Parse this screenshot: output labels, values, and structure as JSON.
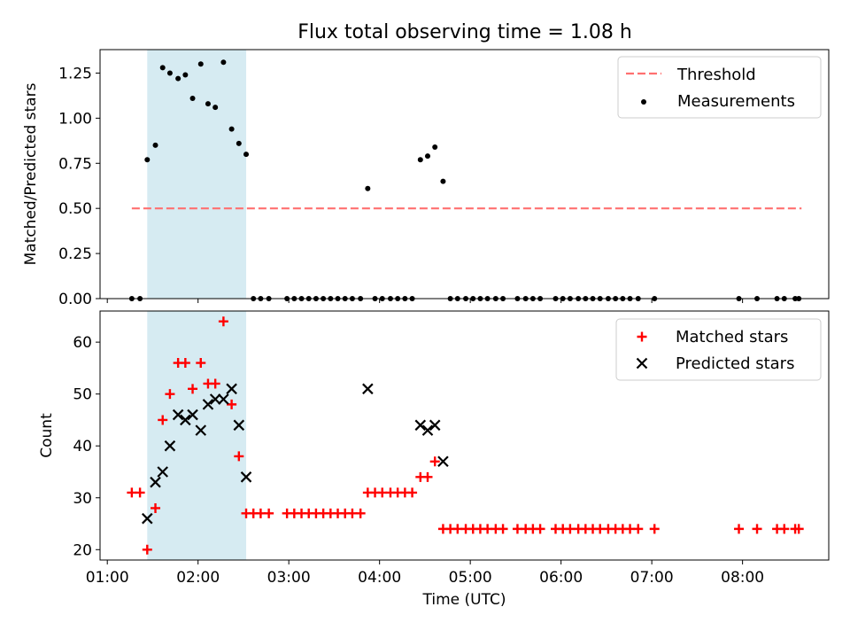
{
  "title": "Flux total observing time = 1.08 h",
  "colors": {
    "threshold": "#ff7070",
    "measurement": "#000000",
    "matched": "#ff0000",
    "predicted": "#000000",
    "band": "#add8e6"
  },
  "chart_data": [
    {
      "type": "scatter",
      "ylabel": "Matched/Predicted stars",
      "ylim": [
        0,
        1.38
      ],
      "yticks": [
        0,
        0.25,
        0.5,
        0.75,
        1.0,
        1.25
      ],
      "ytick_labels": [
        "0.00",
        "0.25",
        "0.50",
        "0.75",
        "1.00",
        "1.25"
      ],
      "xlim_hours": [
        0.92,
        8.95
      ],
      "xticks_hours": [
        1,
        2,
        3,
        4,
        5,
        6,
        7,
        8
      ],
      "highlight_band_hours": [
        1.44,
        2.53
      ],
      "legend": {
        "placement": "top-right",
        "entries": [
          "Threshold",
          "Measurements"
        ]
      },
      "threshold": {
        "name": "Threshold",
        "value": 0.5,
        "x_range_hours": [
          1.27,
          8.65
        ]
      },
      "measurements": {
        "name": "Measurements",
        "x_hours": [
          1.27,
          1.36,
          1.44,
          1.53,
          1.61,
          1.69,
          1.78,
          1.86,
          1.94,
          2.03,
          2.11,
          2.19,
          2.28,
          2.37,
          2.45,
          2.53,
          2.61,
          2.69,
          2.78,
          2.98,
          3.06,
          3.14,
          3.22,
          3.3,
          3.38,
          3.46,
          3.54,
          3.62,
          3.7,
          3.79,
          3.87,
          3.95,
          4.03,
          4.12,
          4.2,
          4.28,
          4.36,
          4.45,
          4.53,
          4.61,
          4.7,
          4.78,
          4.86,
          4.95,
          5.03,
          5.11,
          5.19,
          5.28,
          5.36,
          5.52,
          5.61,
          5.69,
          5.77,
          5.94,
          6.02,
          6.1,
          6.19,
          6.27,
          6.35,
          6.43,
          6.52,
          6.6,
          6.68,
          6.76,
          6.85,
          7.03,
          7.96,
          8.16,
          8.38,
          8.46,
          8.58,
          8.62
        ],
        "y": [
          0,
          0,
          0.77,
          0.85,
          1.28,
          1.25,
          1.22,
          1.24,
          1.11,
          1.3,
          1.08,
          1.06,
          1.31,
          0.94,
          0.86,
          0.8,
          0,
          0,
          0,
          0,
          0,
          0,
          0,
          0,
          0,
          0,
          0,
          0,
          0,
          0,
          0.61,
          0,
          0,
          0,
          0,
          0,
          0,
          0.77,
          0.79,
          0.84,
          0.65,
          0,
          0,
          0,
          0,
          0,
          0,
          0,
          0,
          0,
          0,
          0,
          0,
          0,
          0,
          0,
          0,
          0,
          0,
          0,
          0,
          0,
          0,
          0,
          0,
          0,
          0,
          0,
          0,
          0,
          0,
          0
        ]
      }
    },
    {
      "type": "scatter",
      "xlabel": "Time (UTC)",
      "ylabel": "Count",
      "ylim": [
        18,
        66
      ],
      "yticks": [
        20,
        30,
        40,
        50,
        60
      ],
      "xlim_hours": [
        0.92,
        8.95
      ],
      "xticks_hours": [
        1,
        2,
        3,
        4,
        5,
        6,
        7,
        8
      ],
      "xtick_labels": [
        "01:00",
        "02:00",
        "03:00",
        "04:00",
        "05:00",
        "06:00",
        "07:00",
        "08:00"
      ],
      "highlight_band_hours": [
        1.44,
        2.53
      ],
      "legend": {
        "placement": "top-right",
        "entries": [
          "Matched stars",
          "Predicted stars"
        ]
      },
      "matched": {
        "name": "Matched stars",
        "x_hours": [
          1.27,
          1.36,
          1.44,
          1.53,
          1.61,
          1.69,
          1.78,
          1.86,
          1.94,
          2.03,
          2.11,
          2.19,
          2.28,
          2.37,
          2.45,
          2.53,
          2.61,
          2.69,
          2.78,
          2.98,
          3.06,
          3.14,
          3.22,
          3.3,
          3.38,
          3.46,
          3.54,
          3.62,
          3.7,
          3.79,
          3.87,
          3.95,
          4.03,
          4.12,
          4.2,
          4.28,
          4.36,
          4.45,
          4.53,
          4.61,
          4.7,
          4.78,
          4.86,
          4.95,
          5.03,
          5.11,
          5.19,
          5.28,
          5.36,
          5.52,
          5.61,
          5.69,
          5.77,
          5.94,
          6.02,
          6.1,
          6.19,
          6.27,
          6.35,
          6.43,
          6.52,
          6.6,
          6.68,
          6.76,
          6.85,
          7.03,
          7.96,
          8.16,
          8.38,
          8.46,
          8.58,
          8.62
        ],
        "y": [
          31,
          31,
          20,
          28,
          45,
          50,
          56,
          56,
          51,
          56,
          52,
          52,
          64,
          48,
          38,
          27,
          27,
          27,
          27,
          27,
          27,
          27,
          27,
          27,
          27,
          27,
          27,
          27,
          27,
          27,
          31,
          31,
          31,
          31,
          31,
          31,
          31,
          34,
          34,
          37,
          24,
          24,
          24,
          24,
          24,
          24,
          24,
          24,
          24,
          24,
          24,
          24,
          24,
          24,
          24,
          24,
          24,
          24,
          24,
          24,
          24,
          24,
          24,
          24,
          24,
          24,
          24,
          24,
          24,
          24,
          24,
          24
        ]
      },
      "predicted": {
        "name": "Predicted stars",
        "x_hours": [
          1.44,
          1.53,
          1.61,
          1.69,
          1.78,
          1.86,
          1.94,
          2.03,
          2.11,
          2.19,
          2.28,
          2.37,
          2.45,
          2.53,
          3.87,
          4.45,
          4.53,
          4.61,
          4.7
        ],
        "y": [
          26,
          33,
          35,
          40,
          46,
          45,
          46,
          43,
          48,
          49,
          49,
          51,
          44,
          34,
          51,
          44,
          43,
          44,
          37
        ]
      }
    }
  ]
}
